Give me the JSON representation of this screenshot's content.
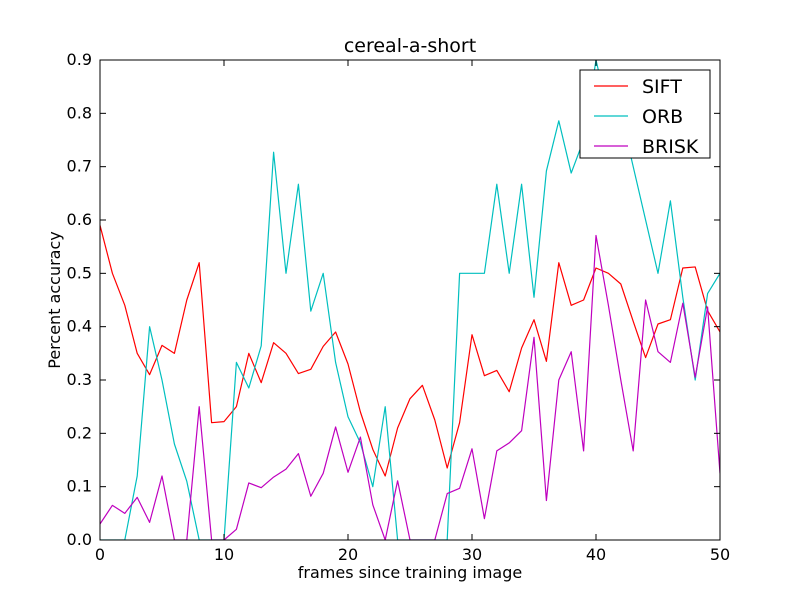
{
  "chart_data": {
    "type": "line",
    "title": "cereal-a-short",
    "xlabel": "frames since training image",
    "ylabel": "Percent accuracy",
    "xlim": [
      0,
      50
    ],
    "ylim": [
      0,
      0.9
    ],
    "xticks": [
      0,
      10,
      20,
      30,
      40,
      50
    ],
    "yticks": [
      0.0,
      0.1,
      0.2,
      0.3,
      0.4,
      0.5,
      0.6,
      0.7,
      0.8,
      0.9
    ],
    "xtick_labels": [
      "0",
      "10",
      "20",
      "30",
      "40",
      "50"
    ],
    "ytick_labels": [
      "0.0",
      "0.1",
      "0.2",
      "0.3",
      "0.4",
      "0.5",
      "0.6",
      "0.7",
      "0.8",
      "0.9"
    ],
    "grid": false,
    "legend_position": "top-right",
    "x": [
      0,
      1,
      2,
      3,
      4,
      5,
      6,
      7,
      8,
      9,
      10,
      11,
      12,
      13,
      14,
      15,
      16,
      17,
      18,
      19,
      20,
      21,
      22,
      23,
      24,
      25,
      26,
      27,
      28,
      29,
      30,
      31,
      32,
      33,
      34,
      35,
      36,
      37,
      38,
      39,
      40,
      41,
      42,
      43,
      44,
      45,
      46,
      47,
      48,
      49,
      50
    ],
    "series": [
      {
        "name": "SIFT",
        "color": "#ff0000",
        "values": [
          0.59,
          0.5,
          0.44,
          0.35,
          0.31,
          0.365,
          0.35,
          0.45,
          0.52,
          0.22,
          0.222,
          0.25,
          0.35,
          0.295,
          0.37,
          0.35,
          0.312,
          0.32,
          0.363,
          0.39,
          0.33,
          0.24,
          0.17,
          0.12,
          0.21,
          0.265,
          0.29,
          0.225,
          0.135,
          0.22,
          0.385,
          0.308,
          0.318,
          0.278,
          0.36,
          0.413,
          0.335,
          0.52,
          0.44,
          0.45,
          0.51,
          0.5,
          0.48,
          0.41,
          0.342,
          0.405,
          0.413,
          0.51,
          0.512,
          0.43,
          0.39
        ]
      },
      {
        "name": "ORB",
        "color": "#00bfbf",
        "values": [
          0.0,
          0.0,
          0.0,
          0.12,
          0.4,
          0.3,
          0.18,
          0.11,
          0.0,
          0.0,
          0.0,
          0.333,
          0.285,
          0.364,
          0.727,
          0.5,
          0.667,
          0.429,
          0.5,
          0.333,
          0.231,
          0.182,
          0.1,
          0.25,
          0.0,
          0.0,
          0.0,
          0.0,
          0.0,
          0.5,
          0.5,
          0.5,
          0.667,
          0.5,
          0.667,
          0.455,
          0.692,
          0.786,
          0.688,
          0.75,
          0.9,
          0.8,
          0.8,
          0.7,
          0.6,
          0.5,
          0.636,
          0.455,
          0.3,
          0.462,
          0.5
        ]
      },
      {
        "name": "BRISK",
        "color": "#bf00bf",
        "values": [
          0.03,
          0.065,
          0.05,
          0.08,
          0.033,
          0.12,
          0.0,
          0.0,
          0.25,
          0.0,
          0.0,
          0.02,
          0.107,
          0.098,
          0.118,
          0.133,
          0.162,
          0.082,
          0.125,
          0.212,
          0.127,
          0.193,
          0.066,
          0.0,
          0.111,
          0.0,
          0.0,
          0.0,
          0.087,
          0.097,
          0.171,
          0.04,
          0.167,
          0.182,
          0.205,
          0.38,
          0.074,
          0.3,
          0.353,
          0.167,
          0.571,
          0.44,
          0.3,
          0.167,
          0.45,
          0.353,
          0.333,
          0.444,
          0.305,
          0.437,
          0.125
        ]
      }
    ]
  }
}
